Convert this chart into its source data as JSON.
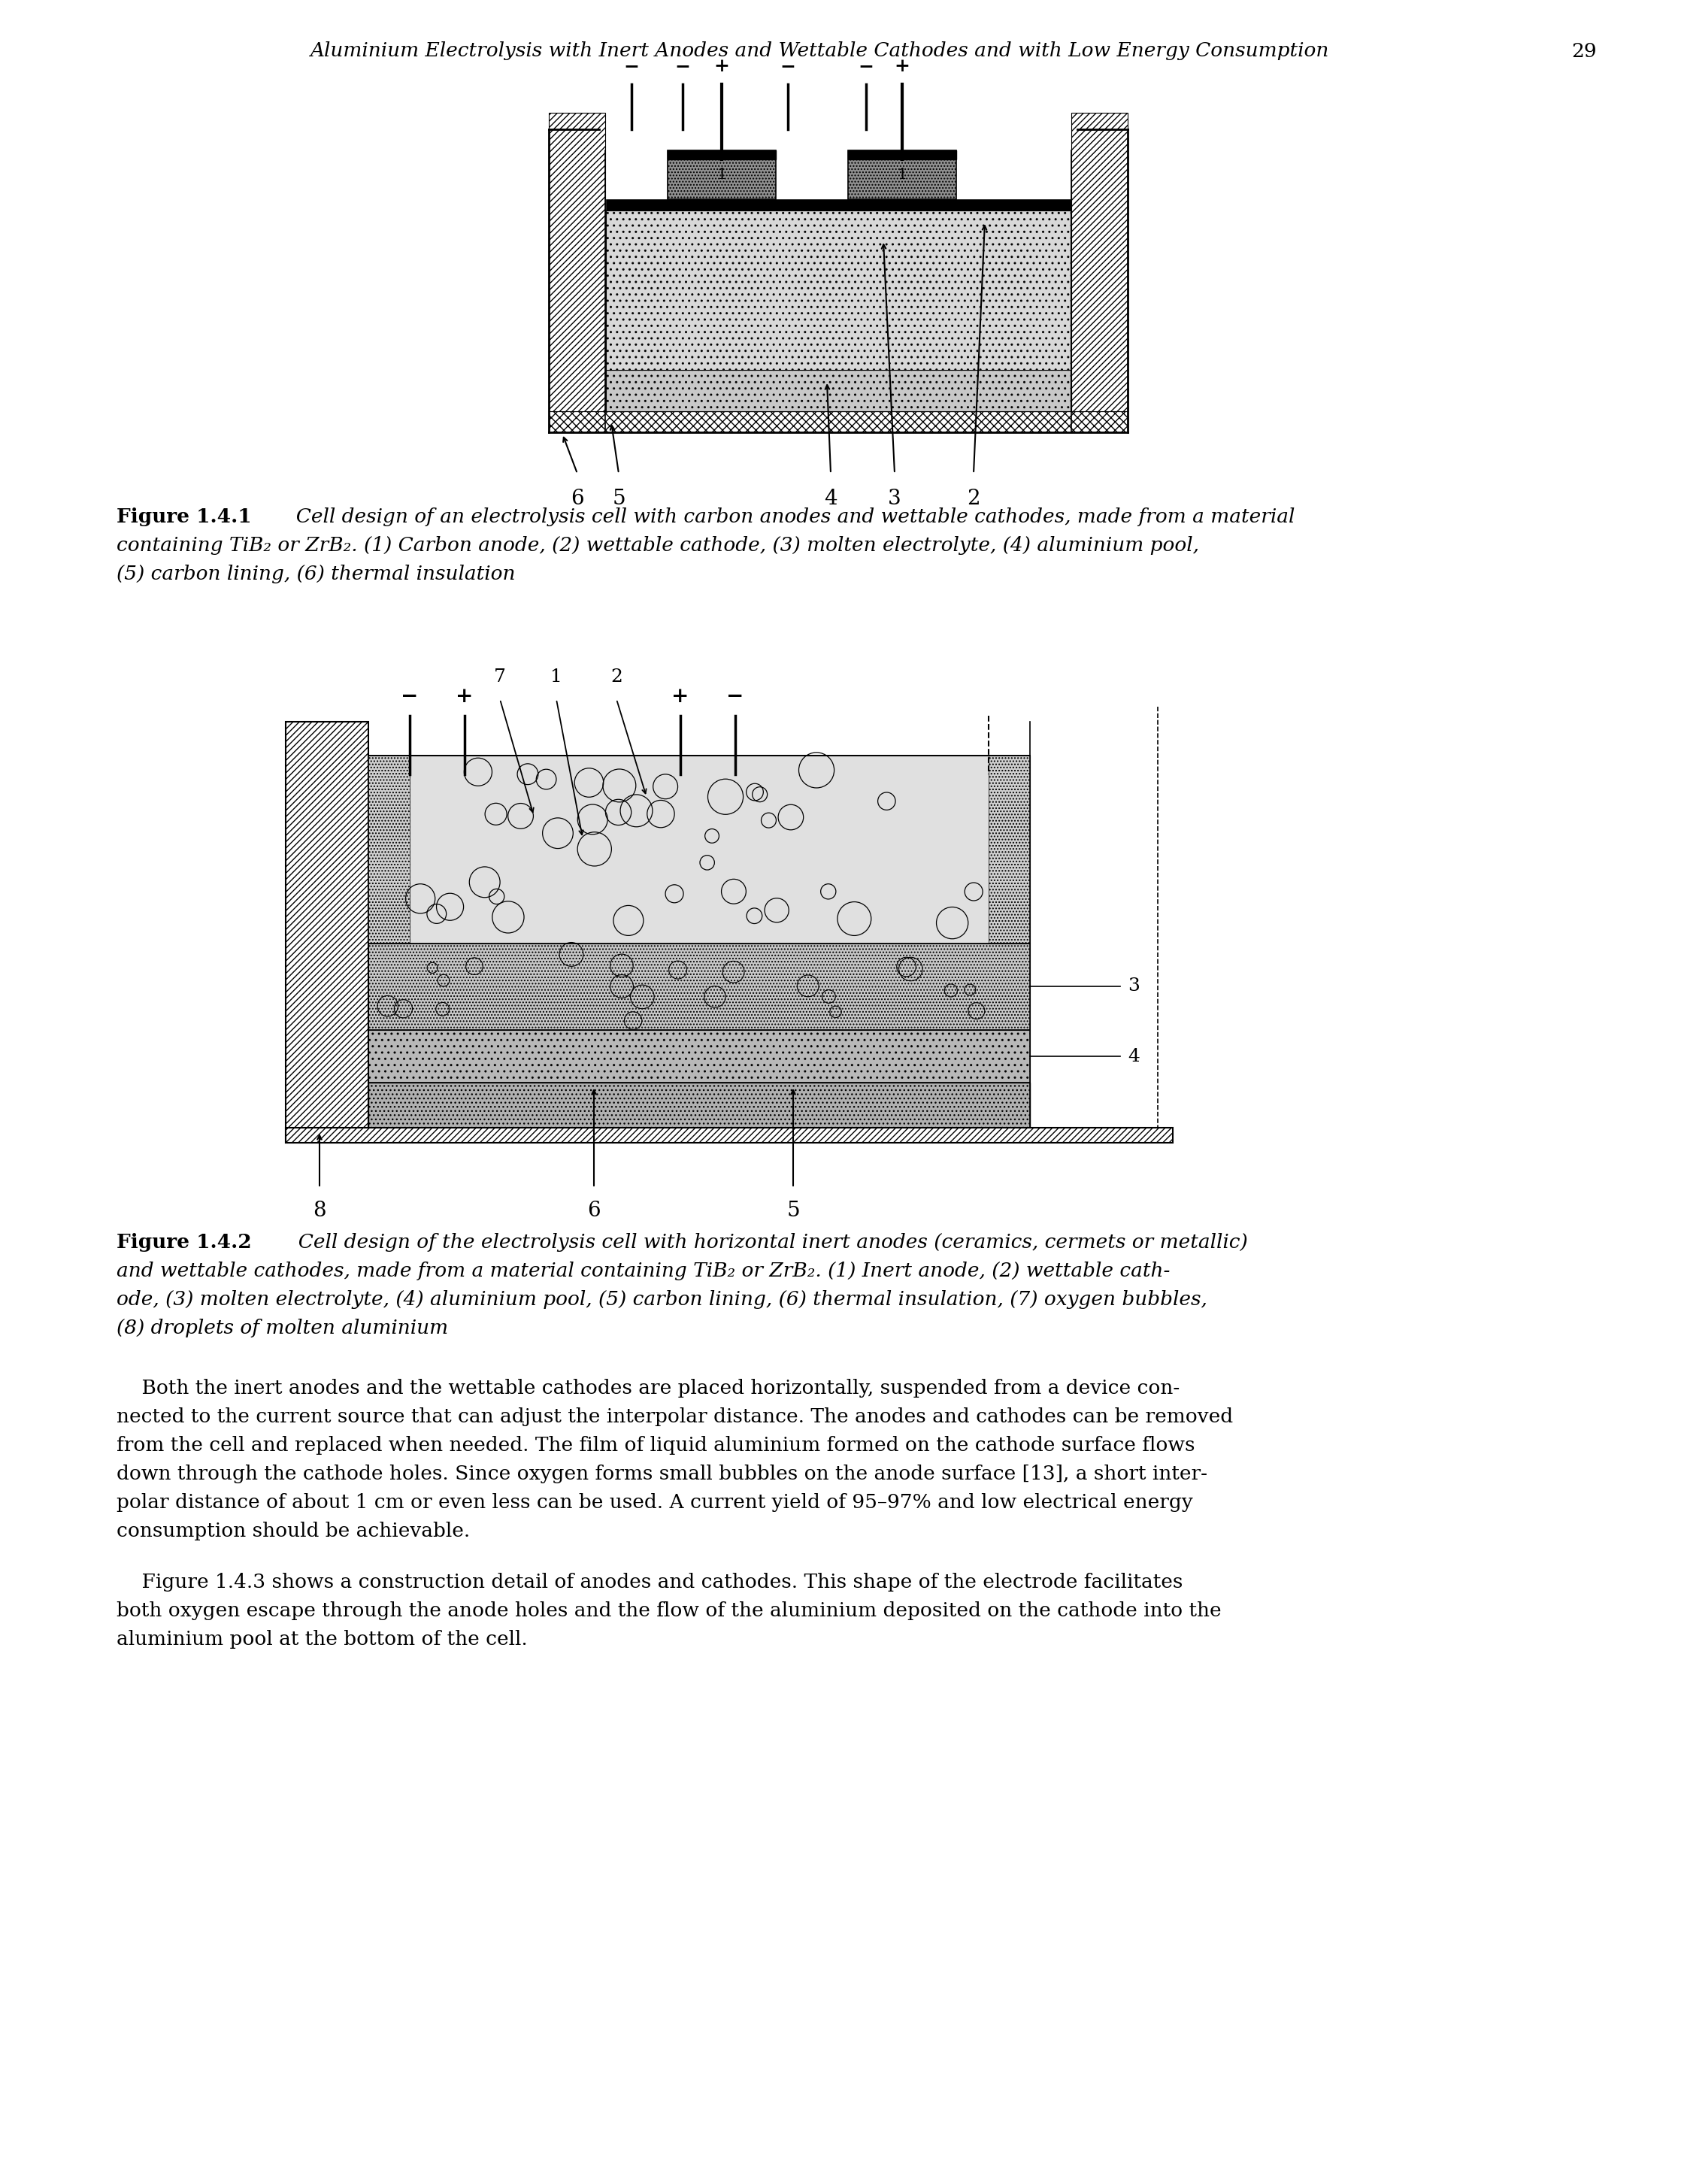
{
  "page_title": "Aluminium Electrolysis with Inert Anodes and Wettable Cathodes and with Low Energy Consumption",
  "page_number": "29",
  "fig1_caption_bold": "Figure 1.4.1",
  "fig1_caption_line1": "  Cell design of an electrolysis cell with carbon anodes and wettable cathodes, made from a material",
  "fig1_caption_line2": "containing TiB₂ or ZrB₂. (1) Carbon anode, (2) wettable cathode, (3) molten electrolyte, (4) aluminium pool,",
  "fig1_caption_line3": "(5) carbon lining, (6) thermal insulation",
  "fig2_caption_bold": "Figure 1.4.2",
  "fig2_caption_line1": "  Cell design of the electrolysis cell with horizontal inert anodes (ceramics, cermets or metallic)",
  "fig2_caption_line2": "and wettable cathodes, made from a material containing TiB₂ or ZrB₂. (1) Inert anode, (2) wettable cath-",
  "fig2_caption_line3": "ode, (3) molten electrolyte, (4) aluminium pool, (5) carbon lining, (6) thermal insulation, (7) oxygen bubbles,",
  "fig2_caption_line4": "(8) droplets of molten aluminium",
  "body_para1_line1": "    Both the inert anodes and the wettable cathodes are placed horizontally, suspended from a device con-",
  "body_para1_line2": "nected to the current source that can adjust the interpolar distance. The anodes and cathodes can be removed",
  "body_para1_line3": "from the cell and replaced when needed. The film of liquid aluminium formed on the cathode surface flows",
  "body_para1_line4": "down through the cathode holes. Since oxygen forms small bubbles on the anode surface [13], a short inter-",
  "body_para1_line5": "polar distance of about 1 cm or even less can be used. A current yield of 95–97% and low electrical energy",
  "body_para1_line6": "consumption should be achievable.",
  "body_para2_line1": "    Figure 1.4.3 shows a construction detail of anodes and cathodes. This shape of the electrode facilitates",
  "body_para2_line2": "both oxygen escape through the anode holes and the flow of the aluminium deposited on the cathode into the",
  "body_para2_line3": "aluminium pool at the bottom of the cell.",
  "background_color": "#ffffff",
  "text_color": "#000000"
}
